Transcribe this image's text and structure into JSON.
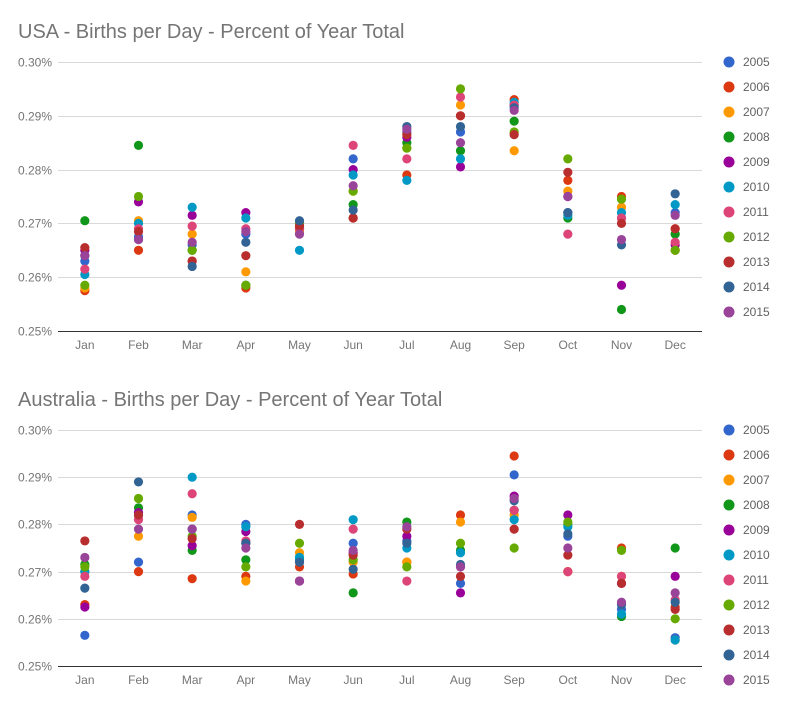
{
  "chart_data": [
    {
      "type": "scatter",
      "title": "USA - Births per Day - Percent of Year Total",
      "categories": [
        "Jan",
        "Feb",
        "Mar",
        "Apr",
        "May",
        "Jun",
        "Jul",
        "Aug",
        "Sep",
        "Oct",
        "Nov",
        "Dec"
      ],
      "ylim": [
        0.25,
        0.3
      ],
      "yticks": [
        0.25,
        0.26,
        0.27,
        0.28,
        0.29,
        0.3
      ],
      "ytick_labels": [
        "0.25%",
        "0.26%",
        "0.27%",
        "0.28%",
        "0.29%",
        "0.30%"
      ],
      "grid": true,
      "legend": "right",
      "series": [
        {
          "name": "2005",
          "color": "#3366cc",
          "values": [
            0.263,
            0.2675,
            0.266,
            0.268,
            0.27,
            0.282,
            0.287,
            0.287,
            0.292,
            0.272,
            0.271,
            0.272
          ]
        },
        {
          "name": "2006",
          "color": "#dc3912",
          "values": [
            0.2575,
            0.265,
            0.263,
            0.258,
            0.269,
            0.271,
            0.279,
            0.29,
            0.293,
            0.278,
            0.275,
            0.265
          ]
        },
        {
          "name": "2007",
          "color": "#ff9900",
          "values": [
            0.258,
            0.2705,
            0.268,
            0.261,
            0.2685,
            0.276,
            0.284,
            0.292,
            0.2835,
            0.276,
            0.273,
            0.269
          ]
        },
        {
          "name": "2008",
          "color": "#109618",
          "values": [
            0.2705,
            0.2845,
            0.265,
            0.2585,
            0.269,
            0.2735,
            0.285,
            0.2835,
            0.289,
            0.271,
            0.254,
            0.268
          ]
        },
        {
          "name": "2009",
          "color": "#990099",
          "values": [
            0.265,
            0.274,
            0.2715,
            0.272,
            0.27,
            0.28,
            0.286,
            0.2805,
            0.292,
            0.275,
            0.2585,
            0.266
          ]
        },
        {
          "name": "2010",
          "color": "#0099c6",
          "values": [
            0.2605,
            0.27,
            0.273,
            0.271,
            0.265,
            0.279,
            0.278,
            0.282,
            0.2925,
            0.2715,
            0.272,
            0.2735
          ]
        },
        {
          "name": "2011",
          "color": "#dd4477",
          "values": [
            0.2615,
            0.269,
            0.2695,
            0.269,
            0.269,
            0.2845,
            0.282,
            0.2935,
            0.292,
            0.268,
            0.271,
            0.2665
          ]
        },
        {
          "name": "2012",
          "color": "#66aa00",
          "values": [
            0.2585,
            0.275,
            0.265,
            0.2585,
            0.27,
            0.276,
            0.284,
            0.295,
            0.287,
            0.282,
            0.2745,
            0.265
          ]
        },
        {
          "name": "2013",
          "color": "#b82e2e",
          "values": [
            0.2655,
            0.2685,
            0.263,
            0.264,
            0.2695,
            0.271,
            0.2865,
            0.29,
            0.2865,
            0.2795,
            0.27,
            0.269
          ]
        },
        {
          "name": "2014",
          "color": "#316395",
          "values": [
            0.264,
            0.267,
            0.262,
            0.2665,
            0.2705,
            0.2725,
            0.288,
            0.288,
            0.2915,
            0.272,
            0.266,
            0.2755
          ]
        },
        {
          "name": "2015",
          "color": "#994499",
          "values": [
            0.264,
            0.267,
            0.2665,
            0.2685,
            0.268,
            0.277,
            0.2875,
            0.285,
            0.291,
            0.275,
            0.267,
            0.2715
          ]
        }
      ]
    },
    {
      "type": "scatter",
      "title": "Australia - Births per Day - Percent of Year Total",
      "categories": [
        "Jan",
        "Feb",
        "Mar",
        "Apr",
        "May",
        "Jun",
        "Jul",
        "Aug",
        "Sep",
        "Oct",
        "Nov",
        "Dec"
      ],
      "ylim": [
        0.25,
        0.3
      ],
      "yticks": [
        0.25,
        0.26,
        0.27,
        0.28,
        0.29,
        0.3
      ],
      "ytick_labels": [
        "0.25%",
        "0.26%",
        "0.27%",
        "0.28%",
        "0.29%",
        "0.30%"
      ],
      "grid": true,
      "legend": "right",
      "series": [
        {
          "name": "2005",
          "color": "#3366cc",
          "values": [
            0.2565,
            0.272,
            0.282,
            0.28,
            0.2725,
            0.276,
            0.2765,
            0.2675,
            0.2905,
            0.2775,
            0.262,
            0.256
          ]
        },
        {
          "name": "2006",
          "color": "#dc3912",
          "values": [
            0.263,
            0.27,
            0.2685,
            0.269,
            0.271,
            0.2695,
            0.272,
            0.282,
            0.2945,
            0.27,
            0.275,
            0.2625
          ]
        },
        {
          "name": "2007",
          "color": "#ff9900",
          "values": [
            0.27,
            0.2775,
            0.2815,
            0.268,
            0.274,
            0.272,
            0.272,
            0.2805,
            0.282,
            0.27,
            0.269,
            0.2555
          ]
        },
        {
          "name": "2008",
          "color": "#109618",
          "values": [
            0.2715,
            0.2835,
            0.2745,
            0.2725,
            0.273,
            0.2655,
            0.2805,
            0.2745,
            0.283,
            0.28,
            0.2605,
            0.275
          ]
        },
        {
          "name": "2009",
          "color": "#990099",
          "values": [
            0.2625,
            0.2825,
            0.2755,
            0.2785,
            0.268,
            0.274,
            0.2775,
            0.2655,
            0.286,
            0.282,
            0.2675,
            0.269
          ]
        },
        {
          "name": "2010",
          "color": "#0099c6",
          "values": [
            0.27,
            0.282,
            0.29,
            0.2795,
            0.273,
            0.281,
            0.275,
            0.274,
            0.281,
            0.2795,
            0.261,
            0.2555
          ]
        },
        {
          "name": "2011",
          "color": "#dd4477",
          "values": [
            0.269,
            0.281,
            0.2865,
            0.2765,
            0.268,
            0.279,
            0.268,
            0.271,
            0.283,
            0.27,
            0.269,
            0.264
          ]
        },
        {
          "name": "2012",
          "color": "#66aa00",
          "values": [
            0.271,
            0.2855,
            0.2775,
            0.271,
            0.276,
            0.2725,
            0.271,
            0.276,
            0.275,
            0.2805,
            0.2745,
            0.26
          ]
        },
        {
          "name": "2013",
          "color": "#b82e2e",
          "values": [
            0.2765,
            0.282,
            0.277,
            0.276,
            0.28,
            0.2735,
            0.279,
            0.269,
            0.279,
            0.2735,
            0.2675,
            0.262
          ]
        },
        {
          "name": "2014",
          "color": "#316395",
          "values": [
            0.2665,
            0.289,
            0.279,
            0.276,
            0.272,
            0.2705,
            0.276,
            0.2715,
            0.285,
            0.278,
            0.263,
            0.2635
          ]
        },
        {
          "name": "2015",
          "color": "#994499",
          "values": [
            0.273,
            0.279,
            0.279,
            0.275,
            0.268,
            0.2745,
            0.2795,
            0.271,
            0.2855,
            0.275,
            0.2635,
            0.2655
          ]
        }
      ]
    }
  ]
}
